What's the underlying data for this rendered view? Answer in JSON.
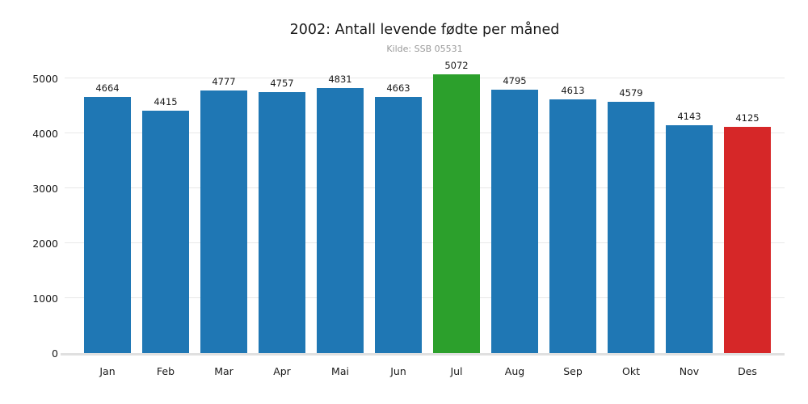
{
  "header": {
    "title": "2002: Antall levende fødte per måned",
    "subtitle": "Kilde: SSB 05531"
  },
  "chart_data": {
    "type": "bar",
    "title": "2002: Antall levende fødte per måned",
    "subtitle": "Kilde: SSB 05531",
    "categories": [
      "Jan",
      "Feb",
      "Mar",
      "Apr",
      "Mai",
      "Jun",
      "Jul",
      "Aug",
      "Sep",
      "Okt",
      "Nov",
      "Des"
    ],
    "values": [
      4664,
      4415,
      4777,
      4757,
      4831,
      4663,
      5072,
      4795,
      4613,
      4579,
      4143,
      4125
    ],
    "bar_colors": [
      "#1f77b4",
      "#1f77b4",
      "#1f77b4",
      "#1f77b4",
      "#1f77b4",
      "#1f77b4",
      "#2ca02c",
      "#1f77b4",
      "#1f77b4",
      "#1f77b4",
      "#1f77b4",
      "#d62728"
    ],
    "value_labels_shown": true,
    "xlabel": "",
    "ylabel": "",
    "ylim": [
      0,
      5000
    ],
    "yticks": [
      0,
      1000,
      2000,
      3000,
      4000,
      5000
    ],
    "grid": "horizontal",
    "legend": "none",
    "colors": {
      "default_bar": "#1f77b4",
      "max_bar": "#2ca02c",
      "min_bar": "#d62728",
      "gridline": "#e8e8e8",
      "axis_line": "#e0e0e0",
      "title_text": "#1a1a1a",
      "subtitle_text": "#999999",
      "tick_text": "#1a1a1a"
    }
  }
}
